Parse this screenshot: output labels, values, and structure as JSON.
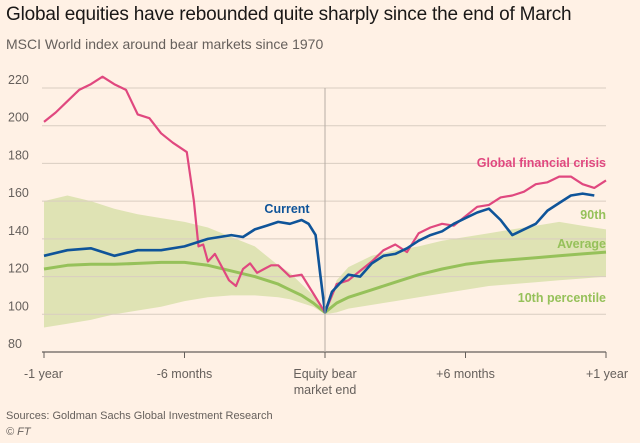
{
  "header": {
    "title": "Global equities have rebounded quite sharply since the end of March",
    "subtitle": "MSCI World index around bear markets since 1970"
  },
  "footer": {
    "source": "Sources: Goldman Sachs Global Investment Research",
    "credit": "© FT"
  },
  "colors": {
    "background": "#fff1e5",
    "current": "#0f5499",
    "gfc": "#e0487f",
    "average": "#96c15a",
    "band": "#dfe3b4",
    "grid": "#d9cdc1",
    "axis": "#66605c"
  },
  "chart_data": {
    "type": "line",
    "title": "Global equities have rebounded quite sharply since the end of March",
    "subtitle": "MSCI World index around bear markets since 1970",
    "xlabel": "",
    "ylabel": "",
    "xlim": [
      -12,
      12
    ],
    "ylim": [
      80,
      220
    ],
    "y_ticks": [
      80,
      100,
      120,
      140,
      160,
      180,
      200,
      220
    ],
    "x_ticks": [
      {
        "value": -12,
        "label": "-1 year"
      },
      {
        "value": -6,
        "label": "-6 months"
      },
      {
        "value": 0,
        "label": "Equity bear market end"
      },
      {
        "value": 6,
        "label": "+6 months"
      },
      {
        "value": 12,
        "label": "+1 year"
      }
    ],
    "grid": true,
    "x_units": "months relative to equity bear market end",
    "series": [
      {
        "name": "90th",
        "color": "#96c15a",
        "x": [
          -12,
          -11,
          -10,
          -9,
          -8,
          -7,
          -6,
          -5,
          -4,
          -3,
          -2,
          -1.5,
          -1,
          -0.5,
          0,
          0.5,
          1,
          2,
          3,
          4,
          5,
          6,
          7,
          8,
          9,
          10,
          11,
          12
        ],
        "values": [
          160,
          163,
          160,
          156,
          153,
          151,
          149,
          146,
          141,
          136,
          126,
          122,
          116,
          110,
          101,
          118,
          125,
          131,
          134,
          136,
          139,
          141,
          143,
          145,
          147,
          149,
          147,
          145
        ]
      },
      {
        "name": "10th percentile",
        "color": "#96c15a",
        "x": [
          -12,
          -11,
          -10,
          -9,
          -8,
          -7,
          -6,
          -5,
          -4,
          -3,
          -2,
          -1.5,
          -1,
          -0.5,
          0,
          0.5,
          1,
          2,
          3,
          4,
          5,
          6,
          7,
          8,
          9,
          10,
          11,
          12
        ],
        "values": [
          93,
          95,
          97,
          100,
          102,
          104,
          107,
          109,
          110,
          110,
          109,
          108,
          106,
          104,
          100,
          101,
          103,
          105,
          107,
          109,
          111,
          113,
          115,
          116,
          117,
          118,
          119,
          120
        ]
      },
      {
        "name": "Average",
        "color": "#96c15a",
        "x": [
          -12,
          -11,
          -10,
          -9,
          -8,
          -7,
          -6,
          -5,
          -4,
          -3,
          -2,
          -1.5,
          -1,
          -0.5,
          0,
          0.5,
          1,
          2,
          3,
          4,
          5,
          6,
          7,
          8,
          9,
          10,
          11,
          12
        ],
        "values": [
          124,
          126,
          126.5,
          126.5,
          127,
          127.5,
          127.5,
          126,
          123,
          120,
          116,
          113,
          110,
          106,
          101,
          106,
          109,
          113,
          117,
          121,
          124,
          126.5,
          128,
          129,
          130,
          131,
          132,
          133
        ]
      },
      {
        "name": "Global financial crisis",
        "color": "#e0487f",
        "x": [
          -12,
          -11.5,
          -11,
          -10.5,
          -10,
          -9.5,
          -9,
          -8.5,
          -8,
          -7.5,
          -7,
          -6.5,
          -5.9,
          -5.6,
          -5.4,
          -5.2,
          -5,
          -4.7,
          -4.4,
          -4.1,
          -3.8,
          -3.5,
          -3.2,
          -2.9,
          -2.6,
          -2.3,
          -2,
          -1.5,
          -1,
          -0.5,
          0,
          0.5,
          1,
          1.5,
          2,
          2.5,
          3,
          3.5,
          4,
          4.5,
          5,
          5.5,
          6,
          6.5,
          7,
          7.5,
          8,
          8.5,
          9,
          9.5,
          10,
          10.5,
          11,
          11.5,
          12
        ],
        "values": [
          202,
          207,
          213,
          219,
          222,
          226,
          222,
          219,
          206,
          204,
          196,
          191,
          186,
          160,
          136,
          137,
          128,
          132,
          125,
          118,
          115,
          124,
          127,
          122,
          124,
          126,
          126,
          120,
          121,
          111,
          101,
          116,
          118,
          123,
          128,
          134,
          137,
          133,
          143,
          146,
          148,
          147,
          152,
          157,
          158,
          162,
          163,
          165,
          169,
          170,
          173,
          173,
          169,
          167,
          171
        ]
      },
      {
        "name": "Current",
        "color": "#0f5499",
        "x": [
          -12,
          -11,
          -10,
          -9,
          -8,
          -7,
          -6,
          -5,
          -4.5,
          -4,
          -3.5,
          -3,
          -2.5,
          -2,
          -1.5,
          -1,
          -0.7,
          -0.4,
          -0.2,
          0,
          0.3,
          0.6,
          1,
          1.5,
          2,
          2.5,
          3,
          3.5,
          4,
          4.5,
          5,
          5.5,
          6,
          6.5,
          7,
          7.5,
          8,
          8.5,
          9,
          9.5,
          10,
          10.5,
          11,
          11.5
        ],
        "values": [
          131,
          134,
          135,
          131,
          134,
          134,
          136,
          140,
          141,
          142,
          141,
          145,
          147,
          149,
          148,
          150,
          148,
          142,
          121,
          101,
          112,
          116,
          121,
          120,
          127,
          131,
          132,
          135,
          139,
          142,
          144,
          148,
          151,
          154,
          156,
          150,
          142,
          145,
          148,
          155,
          159,
          163,
          164,
          163
        ]
      }
    ],
    "annotations": [
      {
        "text": "Current",
        "color": "#0f5499"
      },
      {
        "text": "Global financial crisis",
        "color": "#e0487f"
      },
      {
        "text": "90th",
        "color": "#96c15a"
      },
      {
        "text": "Average",
        "color": "#96c15a"
      },
      {
        "text": "10th percentile",
        "color": "#96c15a"
      }
    ]
  }
}
